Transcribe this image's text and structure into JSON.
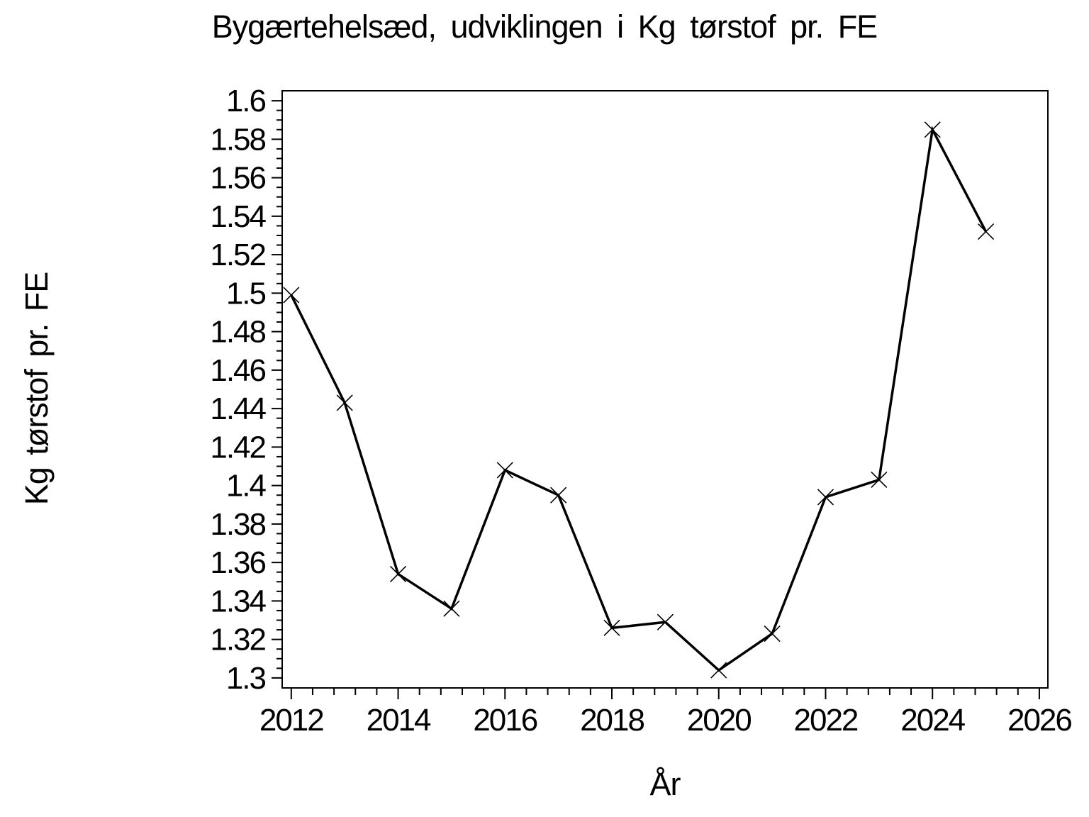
{
  "page": {
    "background": "#ffffff",
    "foreground": "#000000"
  },
  "chart_data": {
    "type": "line",
    "title": "Bygærtehelsæd, udviklingen i Kg tørstof pr. FE",
    "xlabel": "År",
    "ylabel": "Kg tørstof pr. FE",
    "grid": false,
    "legend": false,
    "line_color": "#000000",
    "marker": "x",
    "series": [
      {
        "name": "Kg tørstof pr. FE",
        "x": [
          2012,
          2013,
          2014,
          2015,
          2016,
          2017,
          2018,
          2019,
          2020,
          2021,
          2022,
          2023,
          2024,
          2025
        ],
        "y": [
          1.499,
          1.443,
          1.354,
          1.336,
          1.408,
          1.395,
          1.326,
          1.329,
          1.304,
          1.323,
          1.394,
          1.403,
          1.585,
          1.532
        ]
      }
    ],
    "xlim": [
      2011.83,
      2026.16
    ],
    "ylim": [
      1.2948,
      1.6052
    ],
    "x_major_ticks": [
      2012,
      2014,
      2016,
      2018,
      2020,
      2022,
      2024,
      2026
    ],
    "x_tick_labels": [
      "2012",
      "2014",
      "2016",
      "2018",
      "2020",
      "2022",
      "2024",
      "2026"
    ],
    "x_minor_step": 0.4,
    "y_major_ticks": [
      1.3,
      1.32,
      1.34,
      1.36,
      1.38,
      1.4,
      1.42,
      1.44,
      1.46,
      1.48,
      1.5,
      1.52,
      1.54,
      1.56,
      1.58,
      1.6
    ],
    "y_tick_labels": [
      "1.3",
      "1.32",
      "1.34",
      "1.36",
      "1.38",
      "1.4",
      "1.42",
      "1.44",
      "1.46",
      "1.48",
      "1.5",
      "1.52",
      "1.54",
      "1.56",
      "1.58",
      "1.6"
    ],
    "y_minor_step": 0.005
  }
}
